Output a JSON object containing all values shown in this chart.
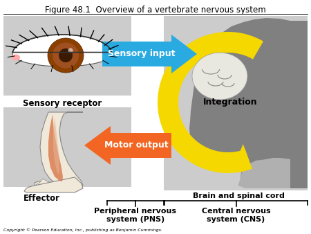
{
  "title": "Figure 48.1  Overview of a vertebrate nervous system",
  "title_fontsize": 8.5,
  "bg_color": "#ffffff",
  "panel_bg": "#cccccc",
  "sensory_input_text": "Sensory input",
  "motor_output_text": "Motor output",
  "integration_text": "Integration",
  "sensory_receptor_text": "Sensory receptor",
  "effector_text": "Effector",
  "brain_cord_text": "Brain and spinal cord",
  "pns_text": "Peripheral nervous\nsystem (PNS)",
  "cns_text": "Central nervous\nsystem (CNS)",
  "copyright_text": "Copyright © Pearson Education, Inc., publishing as Benjamin Cummings.",
  "arrow_blue_color": "#29abe2",
  "arrow_orange_color": "#f26522",
  "arrow_yellow_color": "#f5d800",
  "head_gray": "#808080",
  "spine_light": "#b0b0b0",
  "white": "#ffffff",
  "eye_brown": "#8B4000",
  "eye_dark": "#3a1a00",
  "leg_skin": "#f0e8d8",
  "leg_muscle": "#d97040",
  "fig_width": 4.5,
  "fig_height": 3.38,
  "dpi": 100
}
